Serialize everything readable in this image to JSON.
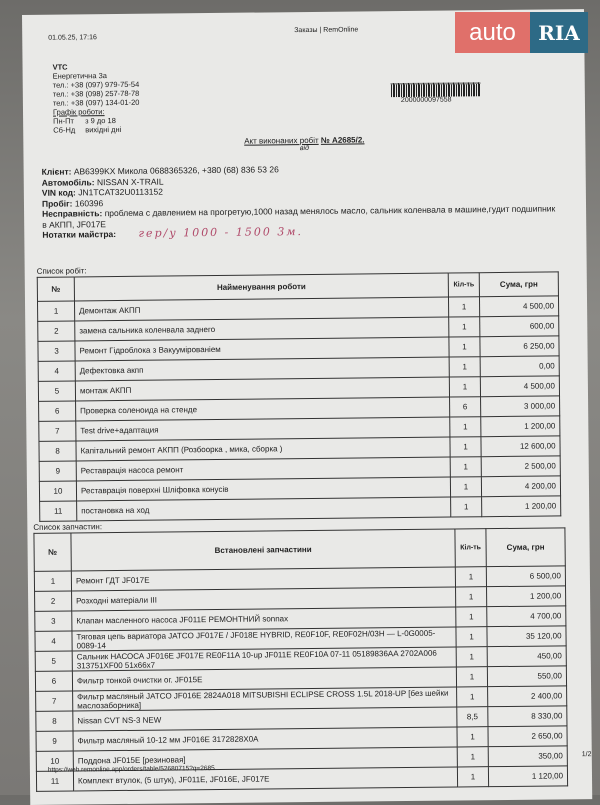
{
  "header": {
    "datetime": "01.05.25, 17:16",
    "site": "Заказы | RemOnline"
  },
  "logo": {
    "auto": "auto",
    "ria": "RIA",
    "color_auto": "#e0706a",
    "color_ria": "#2d6a86"
  },
  "company": {
    "name": "VTC",
    "address": "Енергетична 3а",
    "phones": [
      "тел.: +38 (097) 979-75-54",
      "тел.: +38 (098) 257-78-78",
      "тел.: +38 (097) 134-01-20"
    ],
    "schedule_label": "Графік роботи:",
    "schedule": [
      {
        "days": "Пн-Пт",
        "hours": "з 9 до 18"
      },
      {
        "days": "Сб-Нд",
        "hours": "вихідні дні"
      }
    ]
  },
  "barcode": "2000000097558",
  "title": {
    "text": "Акт виконаних робіт",
    "number": "№ A2685/2.",
    "sub": "від"
  },
  "info": {
    "client_label": "Клієнт:",
    "client": "AB6399KX Микола 0688365326, +380 (68) 836 53 26",
    "car_label": "Автомобіль:",
    "car": "NISSAN X-TRAIL",
    "vin_label": "VIN код:",
    "vin": "JN1TCAT32U0113152",
    "mileage_label": "Пробіг:",
    "mileage": "160396",
    "fault_label": "Несправність:",
    "fault": "проблема с давлением на прогретую,1000 назад менялось масло, сальник коленвала в машине,гудит подшипник в АКПП, JF017E",
    "notes_label": "Нотатки майстра:",
    "notes_handwritten": "гер/у 1000 - 1500 3м."
  },
  "works": {
    "caption": "Список робіт:",
    "headers": [
      "№",
      "Найменування роботи",
      "Кіл-ть",
      "Сума, грн"
    ],
    "rows": [
      {
        "n": "1",
        "name": "Демонтаж АКПП",
        "qty": "1",
        "sum": "4 500,00"
      },
      {
        "n": "2",
        "name": "замена сальника коленвала заднего",
        "qty": "1",
        "sum": "600,00"
      },
      {
        "n": "3",
        "name": "Ремонт Гідроблока з Вакуумірованіем",
        "qty": "1",
        "sum": "6 250,00"
      },
      {
        "n": "4",
        "name": "Дефектовка акпп",
        "qty": "1",
        "sum": "0,00"
      },
      {
        "n": "5",
        "name": "монтаж АКПП",
        "qty": "1",
        "sum": "4 500,00"
      },
      {
        "n": "6",
        "name": "Проверка соленоида на стенде",
        "qty": "6",
        "sum": "3 000,00"
      },
      {
        "n": "7",
        "name": "Test drive+адаптация",
        "qty": "1",
        "sum": "1 200,00"
      },
      {
        "n": "8",
        "name": "Капітальний ремонт АКПП (Розбоорка , мика, сборка )",
        "qty": "1",
        "sum": "12 600,00"
      },
      {
        "n": "9",
        "name": "Реставрація насоса ремонт",
        "qty": "1",
        "sum": "2 500,00"
      },
      {
        "n": "10",
        "name": "Реставрація поверхні Шліфовка конусів",
        "qty": "1",
        "sum": "4 200,00"
      },
      {
        "n": "11",
        "name": "постановка на ход",
        "qty": "1",
        "sum": "1 200,00"
      }
    ]
  },
  "parts": {
    "caption": "Список запчастин:",
    "headers": [
      "№",
      "Встановлені запчастини",
      "Кіл-ть",
      "Сума, грн"
    ],
    "rows": [
      {
        "n": "1",
        "name": "Ремонт ГДТ JF017E",
        "qty": "1",
        "sum": "6 500,00"
      },
      {
        "n": "2",
        "name": "Розходні матеріали III",
        "qty": "1",
        "sum": "1 200,00"
      },
      {
        "n": "3",
        "name": "Клапан масленного насоса JF011E РЕМОНТНИЙ sonnax",
        "qty": "1",
        "sum": "4 700,00"
      },
      {
        "n": "4",
        "name": "Тяговая цепь вариатора JATCO JF017E / JF018E HYBRID, RE0F10F, RE0F02H/03H — L-0G0005-0089-14",
        "qty": "1",
        "sum": "35 120,00"
      },
      {
        "n": "5",
        "name": "Сальник НАСОСА JF016E JF017E RE0F11A 10-up JF011E RE0F10A 07-11 05189836AA 2702A006 313751XF00 51x66x7",
        "qty": "1",
        "sum": "450,00"
      },
      {
        "n": "6",
        "name": "Фильтр тонкой очистки ог. JF015E",
        "qty": "1",
        "sum": "550,00"
      },
      {
        "n": "7",
        "name": "Фильтр масляный JATCO JF016E 2824A018 MITSUBISHI ECLIPSE CROSS 1.5L 2018-UP [без шейки маслозаборника]",
        "qty": "1",
        "sum": "2 400,00"
      },
      {
        "n": "8",
        "name": "Nissan CVT NS-3 NEW",
        "qty": "8,5",
        "sum": "8 330,00"
      },
      {
        "n": "9",
        "name": "Фильтр масляный 10-12 мм JF016E 3172828X0A",
        "qty": "1",
        "sum": "2 650,00"
      },
      {
        "n": "10",
        "name": "Поддона JF015E [резиновая]",
        "qty": "1",
        "sum": "350,00"
      },
      {
        "n": "11",
        "name": "Комплект втулок, (5 штук), JF011E, JF016E, JF017E",
        "qty": "1",
        "sum": "1 120,00"
      }
    ]
  },
  "footer": {
    "url": "https://web.remonline.app/orders/table/52680715?q=2685",
    "page": "1/2"
  }
}
